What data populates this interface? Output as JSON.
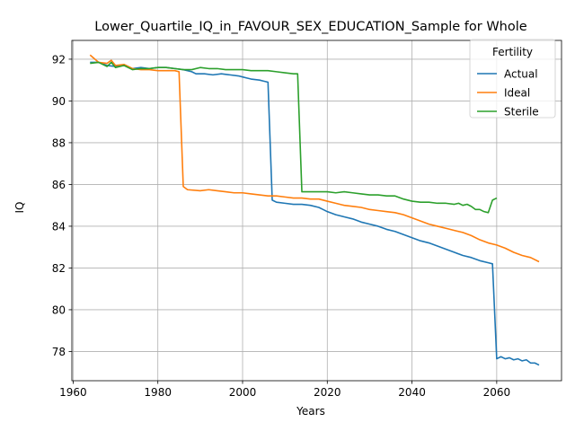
{
  "chart_data": {
    "type": "line",
    "title": "Lower_Quartile_IQ_in_FAVOUR_SEX_EDUCATION_Sample for Whole",
    "xlabel": "Years",
    "ylabel": "IQ",
    "xlim": [
      1959.7,
      2075.3
    ],
    "ylim": [
      76.6,
      92.9
    ],
    "xticks": [
      1960,
      1980,
      2000,
      2020,
      2040,
      2060
    ],
    "yticks": [
      78,
      80,
      82,
      84,
      86,
      88,
      90,
      92
    ],
    "grid": true,
    "legend": {
      "title": "Fertility",
      "placement": "top-right"
    },
    "series": [
      {
        "name": "Actual",
        "color": "#1f77b4",
        "points": [
          [
            1964,
            91.85
          ],
          [
            1966,
            91.85
          ],
          [
            1968,
            91.7
          ],
          [
            1970,
            91.65
          ],
          [
            1972,
            91.7
          ],
          [
            1974,
            91.55
          ],
          [
            1976,
            91.6
          ],
          [
            1978,
            91.55
          ],
          [
            1980,
            91.6
          ],
          [
            1982,
            91.6
          ],
          [
            1984,
            91.55
          ],
          [
            1986,
            91.5
          ],
          [
            1988,
            91.4
          ],
          [
            1989,
            91.3
          ],
          [
            1991,
            91.3
          ],
          [
            1993,
            91.25
          ],
          [
            1995,
            91.3
          ],
          [
            1997,
            91.25
          ],
          [
            1999,
            91.2
          ],
          [
            2000,
            91.15
          ],
          [
            2001,
            91.1
          ],
          [
            2002,
            91.05
          ],
          [
            2004,
            91.0
          ],
          [
            2005,
            90.95
          ],
          [
            2006,
            90.9
          ],
          [
            2007,
            85.25
          ],
          [
            2008,
            85.15
          ],
          [
            2010,
            85.1
          ],
          [
            2012,
            85.05
          ],
          [
            2014,
            85.05
          ],
          [
            2016,
            85.0
          ],
          [
            2018,
            84.9
          ],
          [
            2019,
            84.8
          ],
          [
            2020,
            84.7
          ],
          [
            2022,
            84.55
          ],
          [
            2024,
            84.45
          ],
          [
            2026,
            84.35
          ],
          [
            2028,
            84.2
          ],
          [
            2030,
            84.1
          ],
          [
            2032,
            84.0
          ],
          [
            2034,
            83.85
          ],
          [
            2036,
            83.75
          ],
          [
            2038,
            83.6
          ],
          [
            2040,
            83.45
          ],
          [
            2042,
            83.3
          ],
          [
            2044,
            83.2
          ],
          [
            2046,
            83.05
          ],
          [
            2048,
            82.9
          ],
          [
            2050,
            82.75
          ],
          [
            2052,
            82.6
          ],
          [
            2054,
            82.5
          ],
          [
            2056,
            82.35
          ],
          [
            2058,
            82.25
          ],
          [
            2059,
            82.2
          ],
          [
            2060,
            77.65
          ],
          [
            2061,
            77.75
          ],
          [
            2062,
            77.65
          ],
          [
            2063,
            77.7
          ],
          [
            2064,
            77.6
          ],
          [
            2065,
            77.65
          ],
          [
            2066,
            77.55
          ],
          [
            2067,
            77.6
          ],
          [
            2068,
            77.45
          ],
          [
            2069,
            77.45
          ],
          [
            2070,
            77.35
          ]
        ]
      },
      {
        "name": "Ideal",
        "color": "#ff7f0e",
        "points": [
          [
            1964,
            92.2
          ],
          [
            1966,
            91.85
          ],
          [
            1968,
            91.8
          ],
          [
            1969,
            91.95
          ],
          [
            1970,
            91.7
          ],
          [
            1972,
            91.75
          ],
          [
            1974,
            91.55
          ],
          [
            1976,
            91.5
          ],
          [
            1978,
            91.5
          ],
          [
            1980,
            91.45
          ],
          [
            1982,
            91.45
          ],
          [
            1984,
            91.45
          ],
          [
            1985,
            91.4
          ],
          [
            1986,
            85.9
          ],
          [
            1987,
            85.75
          ],
          [
            1990,
            85.7
          ],
          [
            1992,
            85.75
          ],
          [
            1994,
            85.7
          ],
          [
            1996,
            85.65
          ],
          [
            1998,
            85.6
          ],
          [
            2000,
            85.6
          ],
          [
            2002,
            85.55
          ],
          [
            2004,
            85.5
          ],
          [
            2006,
            85.45
          ],
          [
            2008,
            85.45
          ],
          [
            2010,
            85.4
          ],
          [
            2012,
            85.35
          ],
          [
            2014,
            85.35
          ],
          [
            2016,
            85.3
          ],
          [
            2018,
            85.3
          ],
          [
            2020,
            85.2
          ],
          [
            2022,
            85.1
          ],
          [
            2024,
            85.0
          ],
          [
            2026,
            84.95
          ],
          [
            2028,
            84.9
          ],
          [
            2030,
            84.8
          ],
          [
            2032,
            84.75
          ],
          [
            2034,
            84.7
          ],
          [
            2036,
            84.65
          ],
          [
            2038,
            84.55
          ],
          [
            2040,
            84.4
          ],
          [
            2042,
            84.25
          ],
          [
            2044,
            84.1
          ],
          [
            2046,
            84.0
          ],
          [
            2048,
            83.9
          ],
          [
            2050,
            83.8
          ],
          [
            2052,
            83.7
          ],
          [
            2054,
            83.55
          ],
          [
            2056,
            83.35
          ],
          [
            2058,
            83.2
          ],
          [
            2060,
            83.1
          ],
          [
            2062,
            82.95
          ],
          [
            2064,
            82.75
          ],
          [
            2066,
            82.6
          ],
          [
            2068,
            82.5
          ],
          [
            2070,
            82.3
          ]
        ]
      },
      {
        "name": "Sterile",
        "color": "#2ca02c",
        "points": [
          [
            1964,
            91.8
          ],
          [
            1966,
            91.85
          ],
          [
            1968,
            91.65
          ],
          [
            1969,
            91.85
          ],
          [
            1970,
            91.6
          ],
          [
            1972,
            91.7
          ],
          [
            1974,
            91.5
          ],
          [
            1976,
            91.55
          ],
          [
            1978,
            91.55
          ],
          [
            1980,
            91.6
          ],
          [
            1982,
            91.6
          ],
          [
            1984,
            91.55
          ],
          [
            1986,
            91.5
          ],
          [
            1988,
            91.5
          ],
          [
            1990,
            91.6
          ],
          [
            1992,
            91.55
          ],
          [
            1994,
            91.55
          ],
          [
            1996,
            91.5
          ],
          [
            1998,
            91.5
          ],
          [
            2000,
            91.5
          ],
          [
            2002,
            91.45
          ],
          [
            2004,
            91.45
          ],
          [
            2006,
            91.45
          ],
          [
            2008,
            91.4
          ],
          [
            2010,
            91.35
          ],
          [
            2012,
            91.3
          ],
          [
            2013,
            91.3
          ],
          [
            2014,
            85.65
          ],
          [
            2016,
            85.65
          ],
          [
            2018,
            85.65
          ],
          [
            2020,
            85.65
          ],
          [
            2022,
            85.6
          ],
          [
            2024,
            85.65
          ],
          [
            2026,
            85.6
          ],
          [
            2028,
            85.55
          ],
          [
            2030,
            85.5
          ],
          [
            2032,
            85.5
          ],
          [
            2034,
            85.45
          ],
          [
            2036,
            85.45
          ],
          [
            2038,
            85.3
          ],
          [
            2040,
            85.2
          ],
          [
            2042,
            85.15
          ],
          [
            2044,
            85.15
          ],
          [
            2046,
            85.1
          ],
          [
            2048,
            85.1
          ],
          [
            2050,
            85.05
          ],
          [
            2051,
            85.1
          ],
          [
            2052,
            85.0
          ],
          [
            2053,
            85.05
          ],
          [
            2054,
            84.95
          ],
          [
            2055,
            84.8
          ],
          [
            2056,
            84.8
          ],
          [
            2057,
            84.7
          ],
          [
            2058,
            84.65
          ],
          [
            2059,
            85.25
          ],
          [
            2060,
            85.35
          ]
        ]
      }
    ]
  }
}
